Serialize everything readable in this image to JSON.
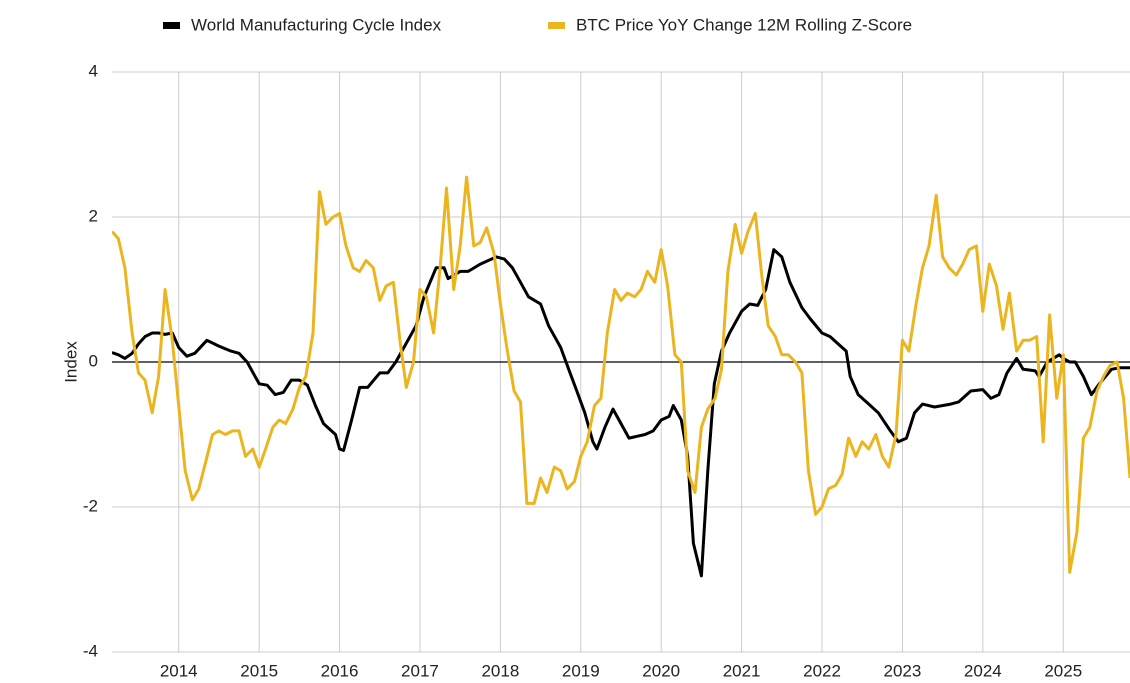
{
  "chart_data": {
    "type": "line",
    "y_label": "Index",
    "xlim": [
      2013.17,
      2025.83
    ],
    "xticks": [
      2014,
      2015,
      2016,
      2017,
      2018,
      2019,
      2020,
      2021,
      2022,
      2023,
      2024,
      2025
    ],
    "ylim": [
      -4,
      4
    ],
    "yticks": [
      -4,
      -2,
      0,
      2,
      4
    ],
    "grid": true,
    "legend": "top",
    "series": [
      {
        "name": "World Manufacturing Cycle Index",
        "color": "#000000",
        "x": [
          2013.17,
          2013.25,
          2013.33,
          2013.42,
          2013.5,
          2013.58,
          2013.67,
          2013.75,
          2013.83,
          2013.92,
          2014.0,
          2014.1,
          2014.2,
          2014.35,
          2014.5,
          2014.65,
          2014.75,
          2014.85,
          2015.0,
          2015.1,
          2015.2,
          2015.3,
          2015.4,
          2015.5,
          2015.6,
          2015.7,
          2015.8,
          2015.95,
          2016.0,
          2016.05,
          2016.15,
          2016.25,
          2016.35,
          2016.5,
          2016.6,
          2016.7,
          2016.8,
          2016.95,
          2017.05,
          2017.2,
          2017.3,
          2017.35,
          2017.5,
          2017.6,
          2017.75,
          2017.95,
          2018.05,
          2018.15,
          2018.25,
          2018.35,
          2018.5,
          2018.6,
          2018.75,
          2018.85,
          2018.95,
          2019.05,
          2019.15,
          2019.2,
          2019.3,
          2019.4,
          2019.5,
          2019.6,
          2019.8,
          2019.9,
          2020.0,
          2020.1,
          2020.15,
          2020.25,
          2020.33,
          2020.4,
          2020.5,
          2020.58,
          2020.66,
          2020.75,
          2020.85,
          2021.0,
          2021.1,
          2021.2,
          2021.3,
          2021.4,
          2021.5,
          2021.6,
          2021.75,
          2021.85,
          2022.0,
          2022.1,
          2022.2,
          2022.3,
          2022.35,
          2022.45,
          2022.55,
          2022.7,
          2022.85,
          2022.95,
          2023.05,
          2023.15,
          2023.25,
          2023.4,
          2023.6,
          2023.7,
          2023.85,
          2024.0,
          2024.1,
          2024.2,
          2024.3,
          2024.42,
          2024.5,
          2024.65,
          2024.7,
          2024.8,
          2024.95,
          2025.0,
          2025.08,
          2025.15,
          2025.25,
          2025.35,
          2025.45,
          2025.6,
          2025.7,
          2025.83
        ],
        "values": [
          0.13,
          0.1,
          0.05,
          0.12,
          0.25,
          0.35,
          0.4,
          0.4,
          0.38,
          0.4,
          0.2,
          0.08,
          0.12,
          0.3,
          0.22,
          0.15,
          0.12,
          0.0,
          -0.3,
          -0.32,
          -0.45,
          -0.42,
          -0.25,
          -0.25,
          -0.32,
          -0.6,
          -0.85,
          -1.0,
          -1.2,
          -1.22,
          -0.8,
          -0.35,
          -0.35,
          -0.15,
          -0.15,
          0.0,
          0.2,
          0.5,
          0.9,
          1.3,
          1.3,
          1.15,
          1.25,
          1.25,
          1.35,
          1.45,
          1.42,
          1.3,
          1.1,
          0.9,
          0.8,
          0.5,
          0.2,
          -0.1,
          -0.4,
          -0.7,
          -1.1,
          -1.2,
          -0.9,
          -0.65,
          -0.85,
          -1.05,
          -1.0,
          -0.95,
          -0.8,
          -0.75,
          -0.6,
          -0.8,
          -1.3,
          -2.5,
          -2.95,
          -1.5,
          -0.3,
          0.15,
          0.4,
          0.7,
          0.8,
          0.78,
          1.0,
          1.55,
          1.45,
          1.1,
          0.75,
          0.6,
          0.4,
          0.35,
          0.25,
          0.15,
          -0.2,
          -0.45,
          -0.55,
          -0.7,
          -0.95,
          -1.1,
          -1.05,
          -0.7,
          -0.58,
          -0.62,
          -0.58,
          -0.55,
          -0.4,
          -0.38,
          -0.5,
          -0.45,
          -0.15,
          0.05,
          -0.1,
          -0.12,
          -0.2,
          0.0,
          0.1,
          0.05,
          0.0,
          0.0,
          -0.2,
          -0.45,
          -0.3,
          -0.1,
          -0.08,
          -0.08
        ]
      },
      {
        "name": "BTC Price YoY Change 12M Rolling Z-Score",
        "color": "#ebb520",
        "x": [
          2013.17,
          2013.25,
          2013.33,
          2013.42,
          2013.5,
          2013.58,
          2013.67,
          2013.75,
          2013.83,
          2013.92,
          2014.0,
          2014.08,
          2014.17,
          2014.25,
          2014.33,
          2014.42,
          2014.5,
          2014.58,
          2014.67,
          2014.75,
          2014.83,
          2014.92,
          2015.0,
          2015.08,
          2015.17,
          2015.25,
          2015.33,
          2015.42,
          2015.5,
          2015.58,
          2015.67,
          2015.75,
          2015.83,
          2015.92,
          2016.0,
          2016.08,
          2016.17,
          2016.25,
          2016.33,
          2016.42,
          2016.5,
          2016.58,
          2016.67,
          2016.75,
          2016.83,
          2016.92,
          2017.0,
          2017.08,
          2017.17,
          2017.25,
          2017.33,
          2017.42,
          2017.5,
          2017.58,
          2017.67,
          2017.75,
          2017.83,
          2017.92,
          2018.0,
          2018.08,
          2018.17,
          2018.25,
          2018.33,
          2018.42,
          2018.5,
          2018.58,
          2018.67,
          2018.75,
          2018.83,
          2018.92,
          2019.0,
          2019.08,
          2019.17,
          2019.25,
          2019.33,
          2019.42,
          2019.5,
          2019.58,
          2019.67,
          2019.75,
          2019.83,
          2019.92,
          2020.0,
          2020.08,
          2020.17,
          2020.25,
          2020.33,
          2020.42,
          2020.5,
          2020.58,
          2020.67,
          2020.75,
          2020.83,
          2020.92,
          2021.0,
          2021.08,
          2021.17,
          2021.25,
          2021.33,
          2021.42,
          2021.5,
          2021.58,
          2021.67,
          2021.75,
          2021.83,
          2021.92,
          2022.0,
          2022.08,
          2022.17,
          2022.25,
          2022.33,
          2022.42,
          2022.5,
          2022.58,
          2022.67,
          2022.75,
          2022.83,
          2022.92,
          2023.0,
          2023.08,
          2023.17,
          2023.25,
          2023.33,
          2023.42,
          2023.5,
          2023.58,
          2023.67,
          2023.75,
          2023.83,
          2023.92,
          2024.0,
          2024.08,
          2024.17,
          2024.25,
          2024.33,
          2024.42,
          2024.5,
          2024.58,
          2024.67,
          2024.75,
          2024.83,
          2024.92,
          2025.0,
          2025.08,
          2025.17,
          2025.25,
          2025.33,
          2025.42,
          2025.5,
          2025.58,
          2025.67,
          2025.75,
          2025.83
        ],
        "values": [
          1.8,
          1.7,
          1.3,
          0.4,
          -0.15,
          -0.25,
          -0.7,
          -0.2,
          1.0,
          0.3,
          -0.6,
          -1.5,
          -1.9,
          -1.75,
          -1.4,
          -1.0,
          -0.95,
          -1.0,
          -0.95,
          -0.95,
          -1.3,
          -1.2,
          -1.45,
          -1.2,
          -0.9,
          -0.8,
          -0.85,
          -0.65,
          -0.35,
          -0.2,
          0.4,
          2.35,
          1.9,
          2.0,
          2.05,
          1.6,
          1.3,
          1.25,
          1.4,
          1.3,
          0.85,
          1.05,
          1.1,
          0.3,
          -0.35,
          0.0,
          1.0,
          0.9,
          0.4,
          1.3,
          2.4,
          1.0,
          1.6,
          2.55,
          1.6,
          1.65,
          1.85,
          1.5,
          0.8,
          0.2,
          -0.4,
          -0.55,
          -1.95,
          -1.95,
          -1.6,
          -1.8,
          -1.45,
          -1.5,
          -1.75,
          -1.65,
          -1.3,
          -1.1,
          -0.6,
          -0.5,
          0.4,
          1.0,
          0.85,
          0.95,
          0.9,
          1.0,
          1.25,
          1.1,
          1.55,
          1.05,
          0.1,
          0.0,
          -1.5,
          -1.8,
          -0.9,
          -0.65,
          -0.5,
          -0.1,
          1.25,
          1.9,
          1.5,
          1.8,
          2.05,
          1.2,
          0.5,
          0.35,
          0.1,
          0.1,
          0.0,
          -0.15,
          -1.5,
          -2.1,
          -2.0,
          -1.75,
          -1.7,
          -1.55,
          -1.05,
          -1.3,
          -1.1,
          -1.2,
          -1.0,
          -1.3,
          -1.45,
          -1.0,
          0.3,
          0.15,
          0.8,
          1.3,
          1.6,
          2.3,
          1.45,
          1.3,
          1.2,
          1.35,
          1.55,
          1.6,
          0.7,
          1.35,
          1.05,
          0.45,
          0.95,
          0.15,
          0.3,
          0.3,
          0.35,
          -1.1,
          0.65,
          -0.5,
          0.1,
          -2.9,
          -2.35,
          -1.05,
          -0.9,
          -0.4,
          -0.2,
          -0.05,
          0.0,
          -0.5,
          -1.6
        ]
      }
    ]
  }
}
